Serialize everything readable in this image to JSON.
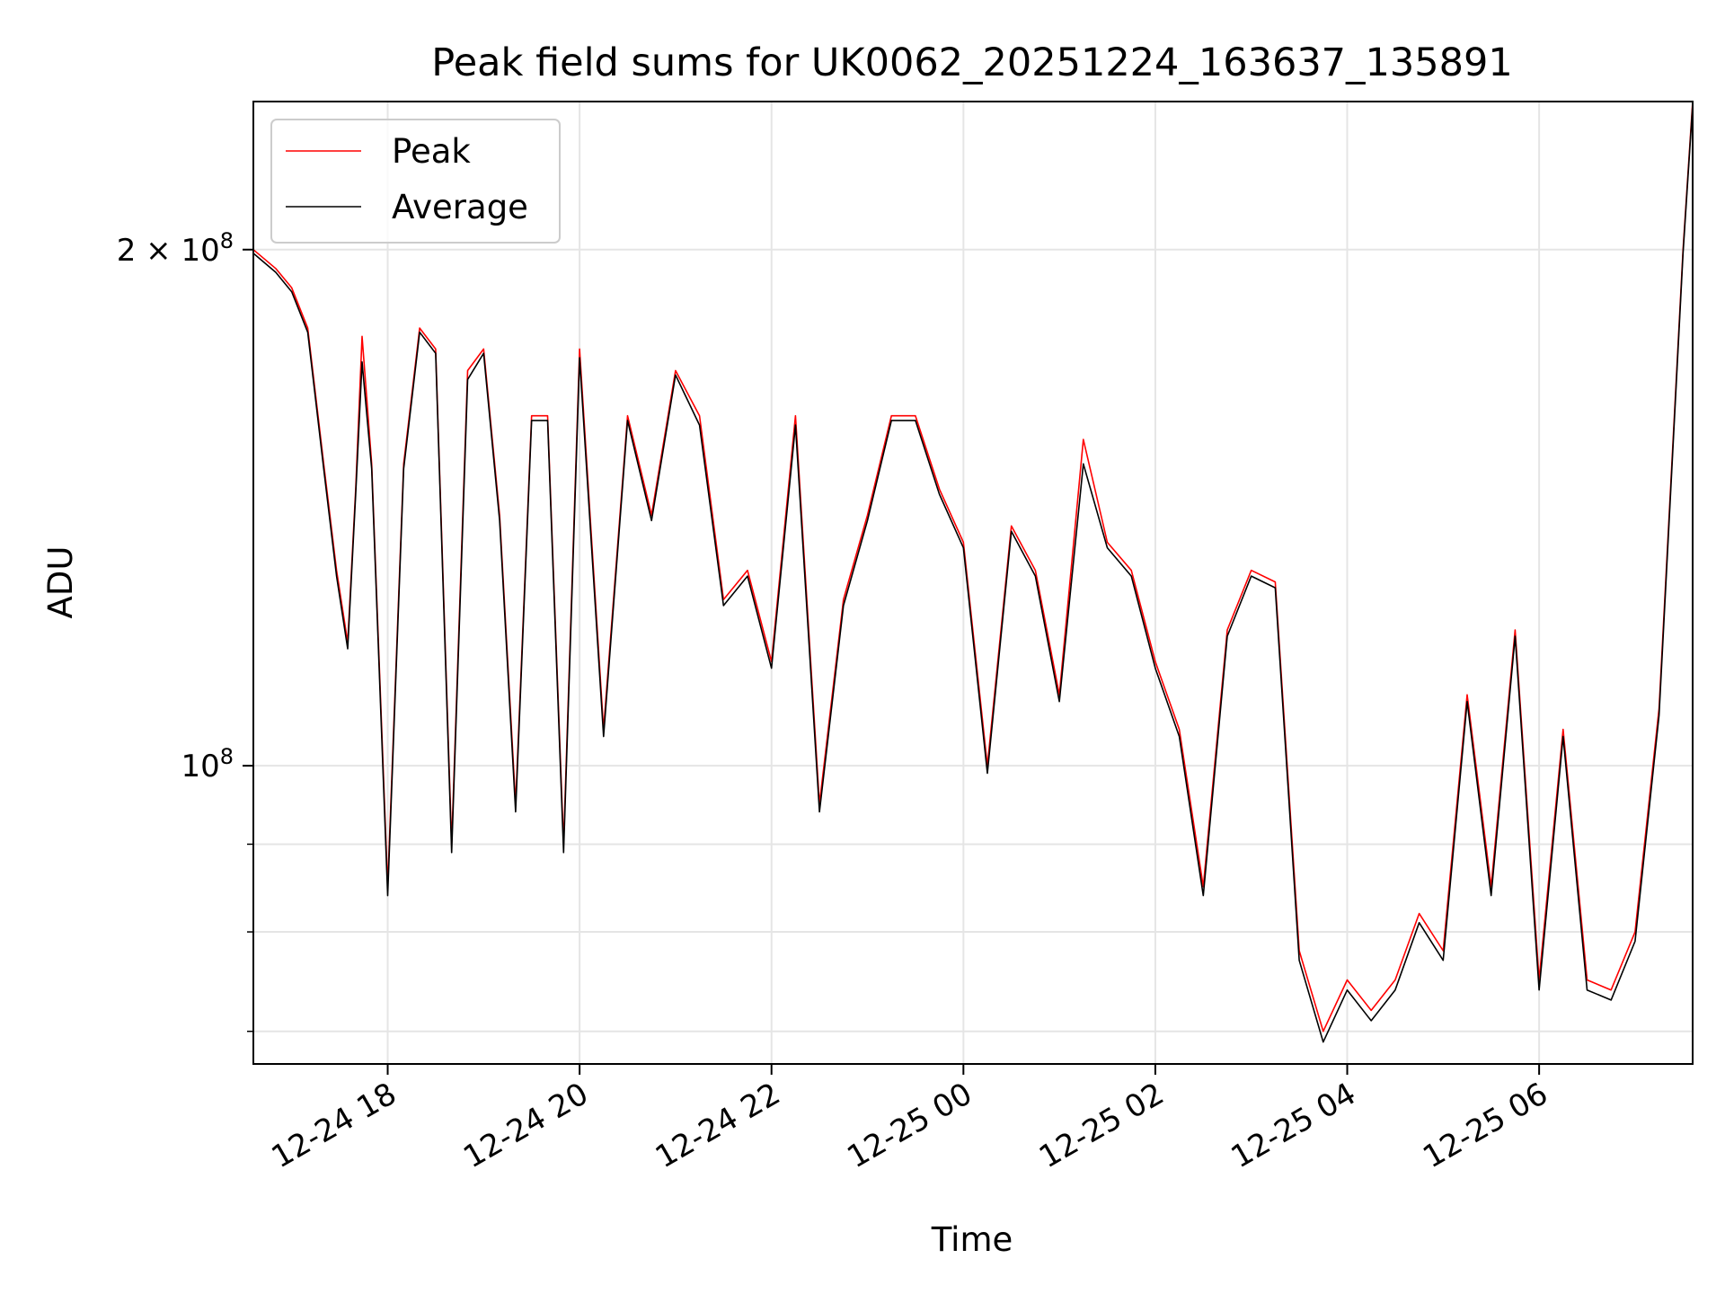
{
  "chart_data": {
    "type": "line",
    "title": "Peak field sums for UK0062_20251224_163637_135891",
    "xlabel": "Time",
    "ylabel": "ADU",
    "x_range": [
      "2025-12-24 16:36",
      "2025-12-25 07:36"
    ],
    "x_ticks": [
      "12-24 18",
      "12-24 20",
      "12-24 22",
      "12-25 00",
      "12-25 02",
      "12-25 04",
      "12-25 06"
    ],
    "x_tick_times": [
      "2025-12-24 18:00",
      "2025-12-24 20:00",
      "2025-12-24 22:00",
      "2025-12-25 00:00",
      "2025-12-25 02:00",
      "2025-12-25 04:00",
      "2025-12-25 06:00"
    ],
    "y_scale": "log",
    "ylim": [
      67000000,
      244000000
    ],
    "y_major_ticks": [
      {
        "value": 100000000,
        "base": "10",
        "exp": "8"
      },
      {
        "value": 200000000,
        "base": "2 × 10",
        "exp": "8"
      }
    ],
    "y_minor_ticks": [
      70000000,
      80000000,
      90000000
    ],
    "grid": true,
    "legend": "upper left",
    "series": [
      {
        "name": "Peak",
        "color": "#ff0000",
        "x": [
          "2025-12-24 16:36",
          "2025-12-24 16:50",
          "2025-12-24 17:00",
          "2025-12-24 17:10",
          "2025-12-24 17:20",
          "2025-12-24 17:28",
          "2025-12-24 17:35",
          "2025-12-24 17:40",
          "2025-12-24 17:44",
          "2025-12-24 17:50",
          "2025-12-24 18:00",
          "2025-12-24 18:10",
          "2025-12-24 18:20",
          "2025-12-24 18:30",
          "2025-12-24 18:40",
          "2025-12-24 18:50",
          "2025-12-24 19:00",
          "2025-12-24 19:10",
          "2025-12-24 19:20",
          "2025-12-24 19:30",
          "2025-12-24 19:40",
          "2025-12-24 19:50",
          "2025-12-24 20:00",
          "2025-12-24 20:15",
          "2025-12-24 20:30",
          "2025-12-24 20:45",
          "2025-12-24 21:00",
          "2025-12-24 21:15",
          "2025-12-24 21:30",
          "2025-12-24 21:45",
          "2025-12-24 22:00",
          "2025-12-24 22:15",
          "2025-12-24 22:30",
          "2025-12-24 22:45",
          "2025-12-24 23:00",
          "2025-12-24 23:15",
          "2025-12-24 23:30",
          "2025-12-24 23:45",
          "2025-12-25 00:00",
          "2025-12-25 00:15",
          "2025-12-25 00:30",
          "2025-12-25 00:45",
          "2025-12-25 01:00",
          "2025-12-25 01:15",
          "2025-12-25 01:30",
          "2025-12-25 01:45",
          "2025-12-25 02:00",
          "2025-12-25 02:15",
          "2025-12-25 02:30",
          "2025-12-25 02:45",
          "2025-12-25 03:00",
          "2025-12-25 03:15",
          "2025-12-25 03:30",
          "2025-12-25 03:45",
          "2025-12-25 04:00",
          "2025-12-25 04:15",
          "2025-12-25 04:30",
          "2025-12-25 04:45",
          "2025-12-25 05:00",
          "2025-12-25 05:15",
          "2025-12-25 05:30",
          "2025-12-25 05:45",
          "2025-12-25 06:00",
          "2025-12-25 06:15",
          "2025-12-25 06:30",
          "2025-12-25 06:45",
          "2025-12-25 07:00",
          "2025-12-25 07:15",
          "2025-12-25 07:30",
          "2025-12-25 07:36"
        ],
        "values": [
          200000000,
          195000000,
          190000000,
          180000000,
          150000000,
          130000000,
          118000000,
          145000000,
          178000000,
          150000000,
          85000000,
          150000000,
          180000000,
          175000000,
          90000000,
          170000000,
          175000000,
          140000000,
          95000000,
          160000000,
          160000000,
          90000000,
          175000000,
          105000000,
          160000000,
          140000000,
          170000000,
          160000000,
          125000000,
          130000000,
          115000000,
          160000000,
          95000000,
          125000000,
          140000000,
          160000000,
          160000000,
          145000000,
          135000000,
          100000000,
          138000000,
          130000000,
          110000000,
          155000000,
          135000000,
          130000000,
          115000000,
          105000000,
          85000000,
          120000000,
          130000000,
          128000000,
          78000000,
          70000000,
          75000000,
          72000000,
          75000000,
          82000000,
          78000000,
          110000000,
          85000000,
          120000000,
          75000000,
          105000000,
          75000000,
          74000000,
          80000000,
          108000000,
          200000000,
          244000000
        ]
      },
      {
        "name": "Average",
        "color": "#000000",
        "x": [
          "2025-12-24 16:36",
          "2025-12-24 16:50",
          "2025-12-24 17:00",
          "2025-12-24 17:10",
          "2025-12-24 17:20",
          "2025-12-24 17:28",
          "2025-12-24 17:35",
          "2025-12-24 17:40",
          "2025-12-24 17:44",
          "2025-12-24 17:50",
          "2025-12-24 18:00",
          "2025-12-24 18:10",
          "2025-12-24 18:20",
          "2025-12-24 18:30",
          "2025-12-24 18:40",
          "2025-12-24 18:50",
          "2025-12-24 19:00",
          "2025-12-24 19:10",
          "2025-12-24 19:20",
          "2025-12-24 19:30",
          "2025-12-24 19:40",
          "2025-12-24 19:50",
          "2025-12-24 20:00",
          "2025-12-24 20:15",
          "2025-12-24 20:30",
          "2025-12-24 20:45",
          "2025-12-24 21:00",
          "2025-12-24 21:15",
          "2025-12-24 21:30",
          "2025-12-24 21:45",
          "2025-12-24 22:00",
          "2025-12-24 22:15",
          "2025-12-24 22:30",
          "2025-12-24 22:45",
          "2025-12-24 23:00",
          "2025-12-24 23:15",
          "2025-12-24 23:30",
          "2025-12-24 23:45",
          "2025-12-25 00:00",
          "2025-12-25 00:15",
          "2025-12-25 00:30",
          "2025-12-25 00:45",
          "2025-12-25 01:00",
          "2025-12-25 01:15",
          "2025-12-25 01:30",
          "2025-12-25 01:45",
          "2025-12-25 02:00",
          "2025-12-25 02:15",
          "2025-12-25 02:30",
          "2025-12-25 02:45",
          "2025-12-25 03:00",
          "2025-12-25 03:15",
          "2025-12-25 03:30",
          "2025-12-25 03:45",
          "2025-12-25 04:00",
          "2025-12-25 04:15",
          "2025-12-25 04:30",
          "2025-12-25 04:45",
          "2025-12-25 05:00",
          "2025-12-25 05:15",
          "2025-12-25 05:30",
          "2025-12-25 05:45",
          "2025-12-25 06:00",
          "2025-12-25 06:15",
          "2025-12-25 06:30",
          "2025-12-25 06:45",
          "2025-12-25 07:00",
          "2025-12-25 07:15",
          "2025-12-25 07:30",
          "2025-12-25 07:36"
        ],
        "values": [
          199000000,
          194000000,
          189000000,
          179000000,
          149000000,
          129000000,
          117000000,
          144000000,
          172000000,
          149000000,
          84000000,
          149000000,
          179000000,
          174000000,
          89000000,
          168000000,
          174000000,
          139000000,
          94000000,
          159000000,
          159000000,
          89000000,
          173000000,
          104000000,
          159000000,
          139000000,
          169000000,
          158000000,
          124000000,
          129000000,
          114000000,
          158000000,
          94000000,
          124000000,
          139000000,
          159000000,
          159000000,
          144000000,
          134000000,
          99000000,
          137000000,
          129000000,
          109000000,
          150000000,
          134000000,
          129000000,
          114000000,
          104000000,
          84000000,
          119000000,
          129000000,
          127000000,
          77000000,
          69000000,
          74000000,
          71000000,
          74000000,
          81000000,
          77000000,
          109000000,
          84000000,
          119000000,
          74000000,
          104000000,
          74000000,
          73000000,
          79000000,
          107000000,
          199000000,
          243000000
        ]
      }
    ]
  }
}
